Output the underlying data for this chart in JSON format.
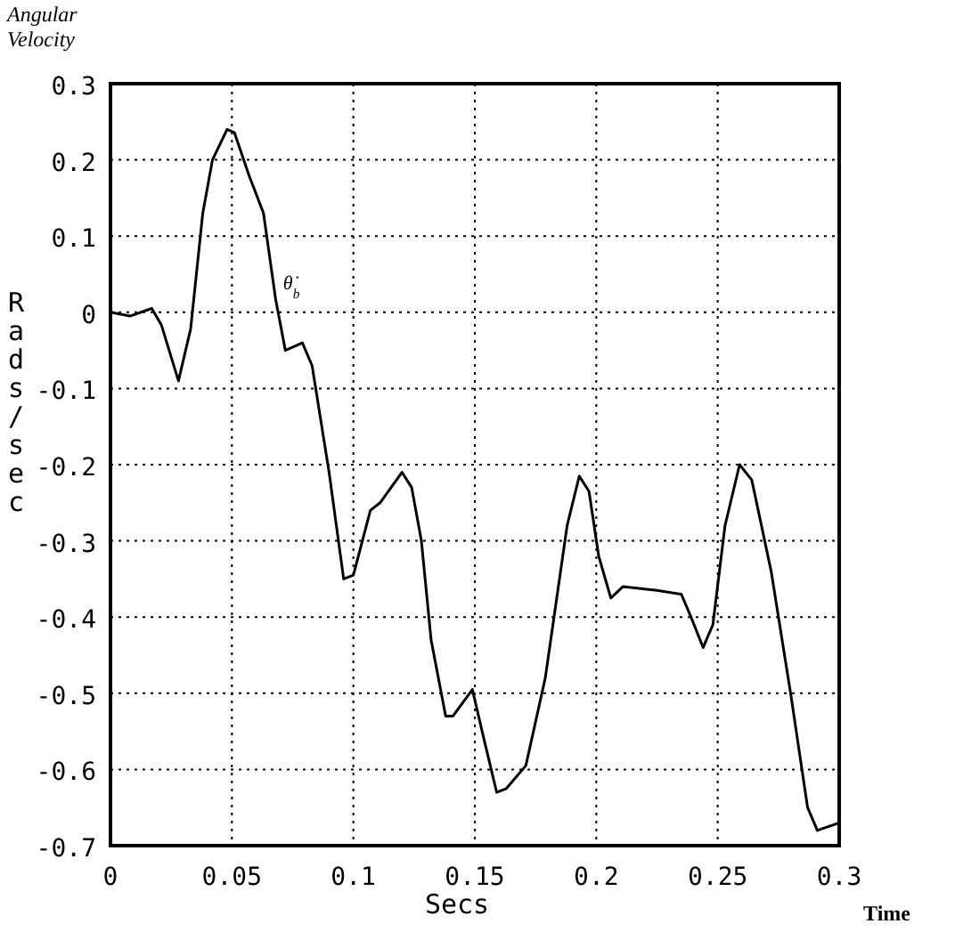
{
  "chart_data": {
    "type": "line",
    "title": "Angular Velocity",
    "xlabel": "Secs",
    "ylabel": "Rads/sec",
    "annotations": [
      "θ̇$_{b}$",
      "Time"
    ],
    "x": [
      0,
      0.008,
      0.017,
      0.021,
      0.028,
      0.033,
      0.038,
      0.042,
      0.048,
      0.051,
      0.057,
      0.063,
      0.068,
      0.072,
      0.079,
      0.083,
      0.09,
      0.096,
      0.1,
      0.107,
      0.111,
      0.12,
      0.124,
      0.128,
      0.132,
      0.138,
      0.141,
      0.149,
      0.153,
      0.159,
      0.163,
      0.171,
      0.179,
      0.188,
      0.193,
      0.197,
      0.201,
      0.206,
      0.211,
      0.225,
      0.235,
      0.239,
      0.244,
      0.248,
      0.253,
      0.259,
      0.264,
      0.272,
      0.28,
      0.287,
      0.291,
      0.3
    ],
    "series": [
      {
        "color": "#000000",
        "values": [
          0,
          -0.005,
          0.005,
          -0.017,
          -0.09,
          -0.022,
          0.13,
          0.2,
          0.24,
          0.236,
          0.18,
          0.13,
          0.017,
          -0.05,
          -0.04,
          -0.07,
          -0.21,
          -0.35,
          -0.345,
          -0.26,
          -0.25,
          -0.21,
          -0.23,
          -0.3,
          -0.43,
          -0.53,
          -0.53,
          -0.495,
          -0.55,
          -0.63,
          -0.625,
          -0.595,
          -0.48,
          -0.28,
          -0.215,
          -0.235,
          -0.32,
          -0.375,
          -0.36,
          -0.365,
          -0.37,
          -0.4,
          -0.44,
          -0.41,
          -0.28,
          -0.2,
          -0.22,
          -0.34,
          -0.5,
          -0.65,
          -0.68,
          -0.67
        ]
      }
    ],
    "xlim": [
      0,
      0.3
    ],
    "xticks": [
      0,
      0.05,
      0.1,
      0.15,
      0.2,
      0.25,
      0.3
    ],
    "ylim": [
      -0.7,
      0.3
    ],
    "yticks": [
      -0.7,
      -0.6,
      -0.5,
      -0.4,
      -0.3,
      -0.2,
      -0.1,
      0,
      0.1,
      0.2,
      0.3
    ],
    "grid": true,
    "marker": "none",
    "line_style": "solid"
  }
}
